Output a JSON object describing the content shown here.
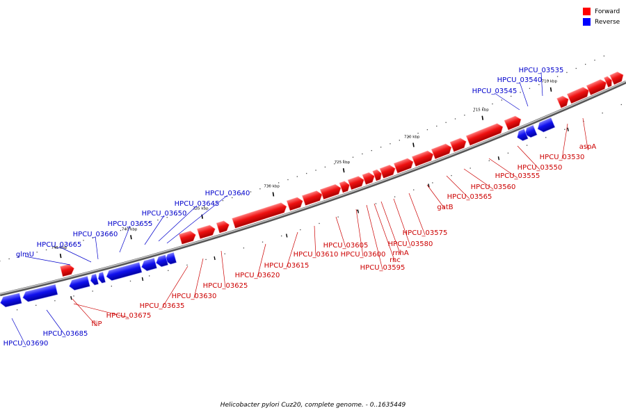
{
  "legend": {
    "forward_label": "Forward",
    "reverse_label": "Reverse",
    "forward_color": "#ff0000",
    "reverse_color": "#0000ff"
  },
  "caption": "Helicobacter pylori Cuz20, complete genome. - 0..1635449",
  "ticks": [
    "710 kbp",
    "715 kbp",
    "720 kbp",
    "725 kbp",
    "730 kbp",
    "735 kbp",
    "740 kbp",
    "745 kbp"
  ],
  "genes_forward": [
    "aspA",
    "HPCU_03530",
    "HPCU_03550",
    "HPCU_03555",
    "HPCU_03560",
    "HPCU_03565",
    "gatB",
    "HPCU_03575",
    "HPCU_03580",
    "rnhA",
    "rnc",
    "HPCU_03595",
    "HPCU_03600",
    "HPCU_03605",
    "HPCU_03610",
    "HPCU_03615",
    "HPCU_03620",
    "HPCU_03625",
    "HPCU_03630",
    "HPCU_03635",
    "HPCU_03675",
    "fliP"
  ],
  "genes_reverse": [
    "HPCU_03535",
    "HPCU_03540",
    "HPCU_03545",
    "HPCU_03640",
    "HPCU_03645",
    "HPCU_03650",
    "HPCU_03655",
    "HPCU_03660",
    "HPCU_03665",
    "glmU",
    "HPCU_03685",
    "HPCU_03690"
  ]
}
